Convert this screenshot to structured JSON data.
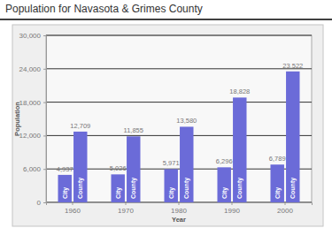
{
  "chart_data": {
    "type": "bar",
    "title": "Population for Navasota & Grimes County",
    "x_label": "Year",
    "y_label": "Population",
    "categories": [
      "1960",
      "1970",
      "1980",
      "1990",
      "2000"
    ],
    "series": [
      {
        "name": "City",
        "color": "#6b6bd8",
        "values": [
          4937,
          5026,
          5971,
          6296,
          6789
        ],
        "value_labels": [
          "4,937",
          "5,026",
          "5,971",
          "6,296",
          "6,789"
        ]
      },
      {
        "name": "County",
        "color": "#6b6bd8",
        "values": [
          12709,
          11855,
          13580,
          18828,
          23522
        ],
        "value_labels": [
          "12,709",
          "11,855",
          "13,580",
          "18,828",
          "23,522"
        ]
      }
    ],
    "ylim": [
      0,
      30000
    ],
    "yticks": [
      0,
      {
        "value": 6000,
        "label": "6,000"
      },
      {
        "value": 12000,
        "label": "12,000"
      },
      {
        "value": 18000,
        "label": "18,000"
      },
      {
        "value": 24000,
        "label": "24,000"
      },
      {
        "value": 30000,
        "label": "30,000"
      }
    ],
    "grid": true,
    "data_labels": true
  }
}
